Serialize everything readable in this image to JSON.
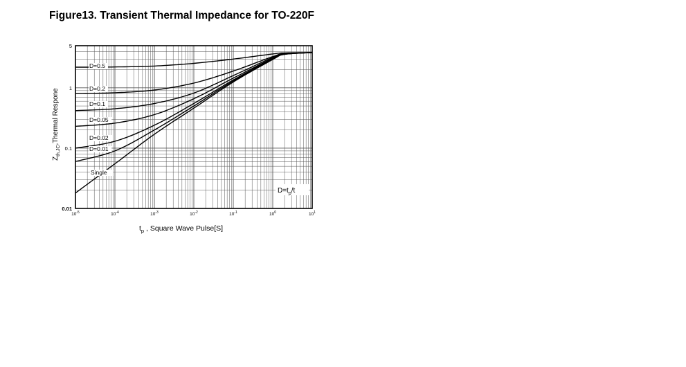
{
  "figure": {
    "title": "Figure13. Transient Thermal Impedance for TO-220F"
  },
  "chart_data": {
    "type": "line",
    "title": "Figure13. Transient Thermal Impedance for TO-220F",
    "xlabel_main": "t",
    "xlabel_sub": "p",
    "xlabel_rest": " ,  Square Wave Pulse[S]",
    "ylabel_main": "Z",
    "ylabel_sub": "th,JC",
    "ylabel_rest": ",Thermal Respone",
    "xscale": "log",
    "yscale": "log",
    "xlim": [
      1e-05,
      10
    ],
    "ylim": [
      0.01,
      5
    ],
    "grid": true,
    "x_ticks": [
      {
        "base": "10",
        "exp": "-5"
      },
      {
        "base": "10",
        "exp": "-4"
      },
      {
        "base": "10",
        "exp": "-3"
      },
      {
        "base": "10",
        "exp": "-2"
      },
      {
        "base": "10",
        "exp": "-1"
      },
      {
        "base": "10",
        "exp": "0"
      },
      {
        "base": "10",
        "exp": "1"
      }
    ],
    "y_ticks": [
      "0.01",
      "0.1",
      "1",
      "5"
    ],
    "annotation": {
      "main": "D=t",
      "sub": "p",
      "rest": "/t"
    },
    "series": [
      {
        "name": "D=0.5",
        "x": [
          1e-05,
          0.0001,
          0.001,
          0.01,
          0.1,
          1,
          2,
          10
        ],
        "y": [
          2.2,
          2.22,
          2.3,
          2.55,
          3.0,
          3.65,
          3.8,
          3.85
        ]
      },
      {
        "name": "D=0.2",
        "x": [
          1e-05,
          0.0001,
          0.001,
          0.01,
          0.1,
          1,
          2,
          10
        ],
        "y": [
          0.8,
          0.83,
          0.92,
          1.2,
          1.9,
          3.3,
          3.7,
          3.85
        ]
      },
      {
        "name": "D=0.1",
        "x": [
          1e-05,
          0.0001,
          0.001,
          0.01,
          0.1,
          1,
          2,
          10
        ],
        "y": [
          0.42,
          0.45,
          0.55,
          0.82,
          1.6,
          3.2,
          3.7,
          3.85
        ]
      },
      {
        "name": "D=0.05",
        "x": [
          1e-05,
          0.0001,
          0.001,
          0.01,
          0.1,
          1,
          2,
          10
        ],
        "y": [
          0.23,
          0.26,
          0.36,
          0.66,
          1.45,
          3.1,
          3.65,
          3.85
        ]
      },
      {
        "name": "D=0.02",
        "x": [
          1e-05,
          0.0001,
          0.001,
          0.01,
          0.1,
          1,
          2,
          10
        ],
        "y": [
          0.1,
          0.13,
          0.24,
          0.55,
          1.35,
          3.05,
          3.6,
          3.85
        ]
      },
      {
        "name": "D=0.01",
        "x": [
          1e-05,
          0.0001,
          0.001,
          0.01,
          0.1,
          1,
          2,
          10
        ],
        "y": [
          0.06,
          0.09,
          0.2,
          0.5,
          1.3,
          3.0,
          3.6,
          3.85
        ]
      },
      {
        "name": "Single",
        "x": [
          1e-05,
          0.0001,
          0.001,
          0.01,
          0.1,
          1,
          2,
          10
        ],
        "y": [
          0.018,
          0.055,
          0.17,
          0.46,
          1.25,
          2.95,
          3.6,
          3.85
        ]
      }
    ]
  }
}
